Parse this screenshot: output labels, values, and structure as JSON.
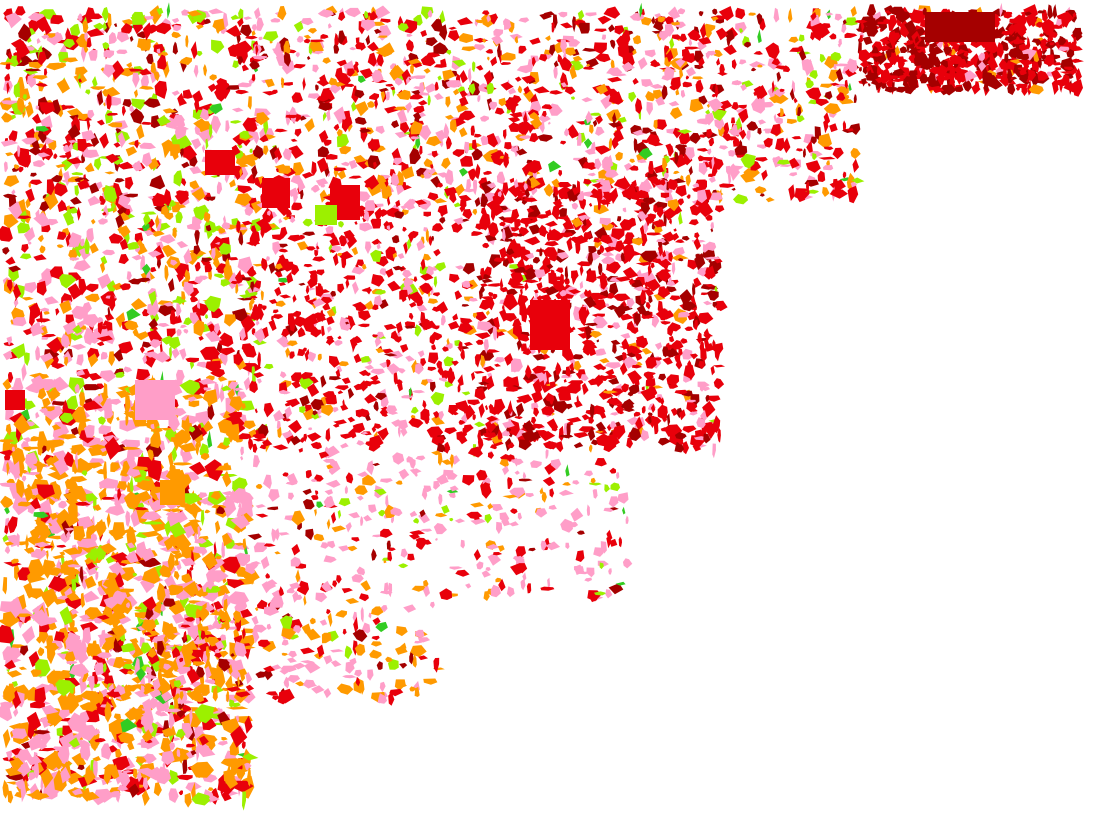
{
  "map": {
    "type": "land-use parcel map",
    "background": "#ffffff",
    "categories": [
      {
        "key": "red",
        "color": "#e8000b"
      },
      {
        "key": "dark-red",
        "color": "#a50000"
      },
      {
        "key": "orange",
        "color": "#ff9a00"
      },
      {
        "key": "pink",
        "color": "#ff9ec8"
      },
      {
        "key": "light-green",
        "color": "#9cf000"
      },
      {
        "key": "green",
        "color": "#33cc22"
      }
    ]
  }
}
